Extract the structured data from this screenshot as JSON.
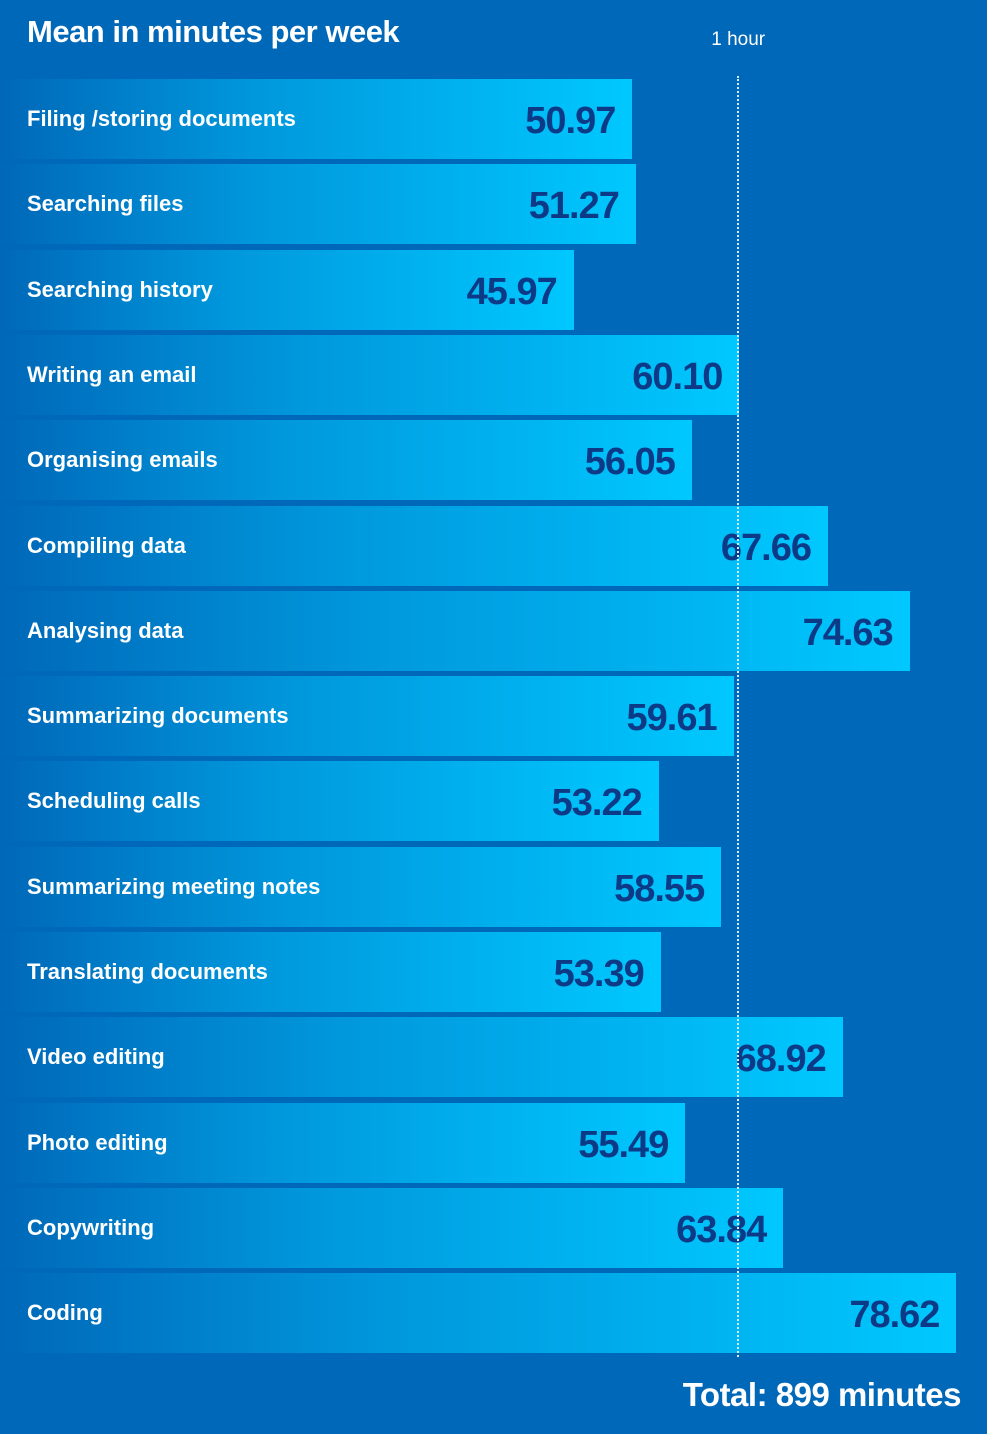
{
  "title": "Mean in minutes per week",
  "reference": {
    "label": "1 hour",
    "value": 60
  },
  "total_label": "Total: 899 minutes",
  "colors": {
    "background": "#0068b8",
    "bar_end": "#00c8ff",
    "value_text": "#0d3a86"
  },
  "chart_data": {
    "type": "bar",
    "orientation": "horizontal",
    "title": "Mean in minutes per week",
    "categories": [
      "Filing /storing documents",
      "Searching files",
      "Searching history",
      "Writing an email",
      "Organising emails",
      "Compiling data",
      "Analysing data",
      "Summarizing documents",
      "Scheduling calls",
      "Summarizing meeting notes",
      "Translating documents",
      "Video editing",
      "Photo editing",
      "Copywriting",
      "Coding"
    ],
    "values": [
      50.97,
      51.27,
      45.97,
      60.1,
      56.05,
      67.66,
      74.63,
      59.61,
      53.22,
      58.55,
      53.39,
      68.92,
      55.49,
      63.84,
      78.62
    ],
    "value_labels": [
      "50.97",
      "51.27",
      "45.97",
      "60.10",
      "56.05",
      "67.66",
      "74.63",
      "59.61",
      "53.22",
      "58.55",
      "53.39",
      "68.92",
      "55.49",
      "63.84",
      "78.62"
    ],
    "reference_line": {
      "value": 60,
      "label": "1 hour"
    },
    "grid": false
  }
}
